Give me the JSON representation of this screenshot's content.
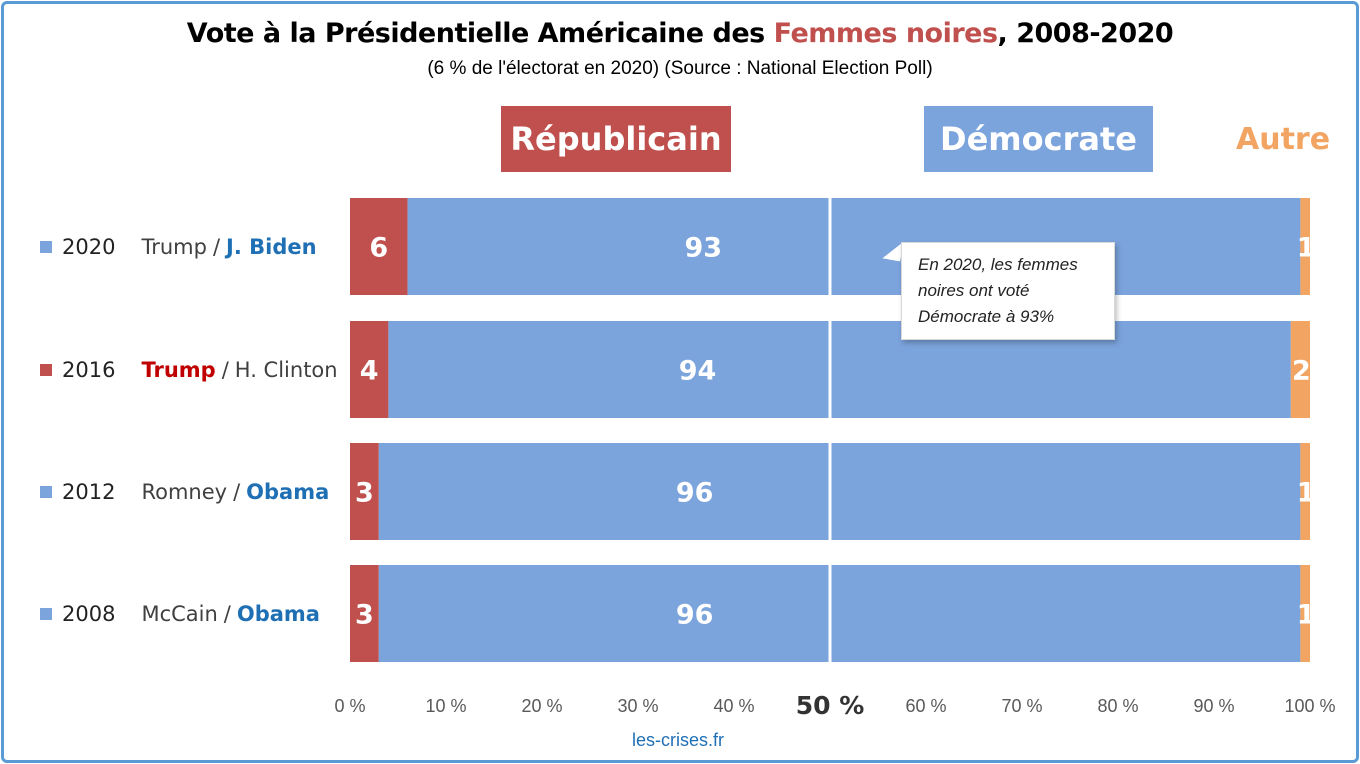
{
  "title": {
    "part1": "Vote à la Présidentielle Américaine des ",
    "highlight": "Femmes noires",
    "part2": ", 2008-2020"
  },
  "subtitle": "(6 % de l'électorat en 2020) (Source : National Election Poll)",
  "legend": {
    "republican": "Républicain",
    "democrat": "Démocrate",
    "other": "Autre"
  },
  "colors": {
    "republican": "#c0504d",
    "democrat": "#7ba3dc",
    "other": "#f2a463"
  },
  "rows": [
    {
      "year": "2020",
      "rep": "Trump",
      "dem": "J. Biden",
      "winner": "dem",
      "square": "#7ba3dc"
    },
    {
      "year": "2016",
      "rep": "Trump",
      "dem": "H. Clinton",
      "winner": "rep",
      "square": "#c0504d"
    },
    {
      "year": "2012",
      "rep": "Romney",
      "dem": "Obama",
      "winner": "dem",
      "square": "#7ba3dc"
    },
    {
      "year": "2008",
      "rep": "McCain",
      "dem": "Obama",
      "winner": "dem",
      "square": "#7ba3dc"
    }
  ],
  "callout": "En 2020, les femmes noires ont voté Démocrate à 93%",
  "source": "les-crises.fr",
  "chart_data": {
    "type": "bar",
    "orientation": "horizontal",
    "stacked": true,
    "categories": [
      "2020",
      "2016",
      "2012",
      "2008"
    ],
    "series": [
      {
        "name": "Républicain",
        "values": [
          6,
          4,
          3,
          3
        ]
      },
      {
        "name": "Démocrate",
        "values": [
          93,
          94,
          96,
          96
        ]
      },
      {
        "name": "Autre",
        "values": [
          1,
          2,
          1,
          1
        ]
      }
    ],
    "xlim": [
      0,
      100
    ],
    "xticks": [
      "0 %",
      "10 %",
      "20 %",
      "30 %",
      "40 %",
      "50 %",
      "60 %",
      "70 %",
      "80 %",
      "90 %",
      "100 %"
    ],
    "reference_line": 50,
    "grid": false,
    "legend_position": "top"
  }
}
